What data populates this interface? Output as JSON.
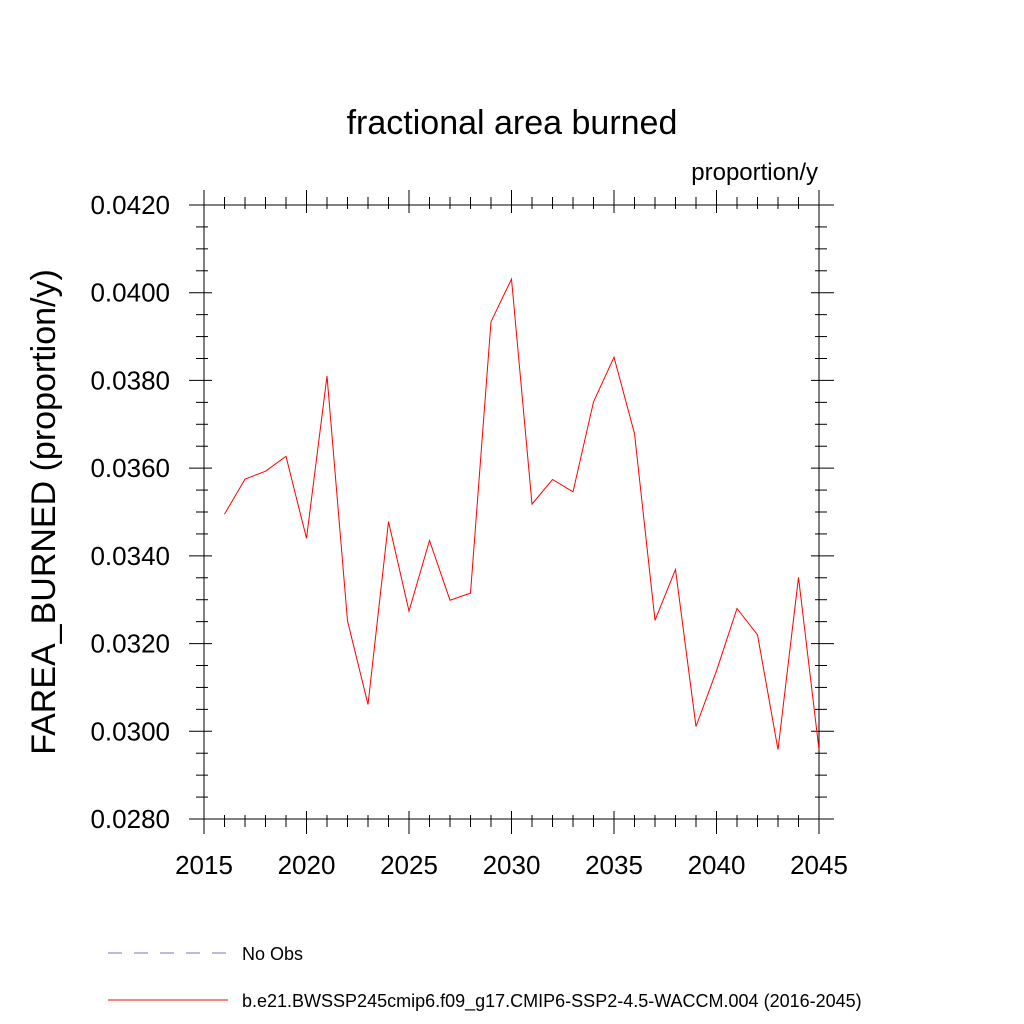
{
  "chart_data": {
    "type": "line",
    "title": "fractional area burned",
    "units": "proportion/y",
    "xlabel": "",
    "ylabel": "FAREA_BURNED  (proportion/y)",
    "xlim": [
      2015,
      2045
    ],
    "ylim": [
      0.028,
      0.042
    ],
    "xticks": [
      2015,
      2020,
      2025,
      2030,
      2035,
      2040,
      2045
    ],
    "yticks": [
      0.028,
      0.03,
      0.032,
      0.034,
      0.036,
      0.038,
      0.04,
      0.042
    ],
    "ytick_labels": [
      "0.0280",
      "0.0300",
      "0.0320",
      "0.0340",
      "0.0360",
      "0.0380",
      "0.0400",
      "0.0420"
    ],
    "series": [
      {
        "name": "b.e21.BWSSP245cmip6.f09_g17.CMIP6-SSP2-4.5-WACCM.004 (2016-2045)",
        "color": "#ff0000",
        "style": "solid",
        "x": [
          2016,
          2017,
          2018,
          2019,
          2020,
          2021,
          2022,
          2023,
          2024,
          2025,
          2026,
          2027,
          2028,
          2029,
          2030,
          2031,
          2032,
          2033,
          2034,
          2035,
          2036,
          2037,
          2038,
          2039,
          2040,
          2041,
          2042,
          2043,
          2044,
          2045
        ],
        "values": [
          0.03495,
          0.03575,
          0.03593,
          0.03627,
          0.0344,
          0.0381,
          0.03252,
          0.03061,
          0.03478,
          0.03274,
          0.03435,
          0.03299,
          0.03315,
          0.03934,
          0.04031,
          0.03518,
          0.03574,
          0.03546,
          0.03751,
          0.03853,
          0.03679,
          0.03253,
          0.03369,
          0.03011,
          0.03138,
          0.0328,
          0.0322,
          0.02958,
          0.03351,
          0.02958
        ]
      }
    ],
    "legend": [
      {
        "label": "No Obs",
        "color": "#7b72c8",
        "style": "dashed"
      },
      {
        "label": "b.e21.BWSSP245cmip6.f09_g17.CMIP6-SSP2-4.5-WACCM.004 (2016-2045)",
        "color": "#ff0000",
        "style": "solid"
      }
    ]
  }
}
